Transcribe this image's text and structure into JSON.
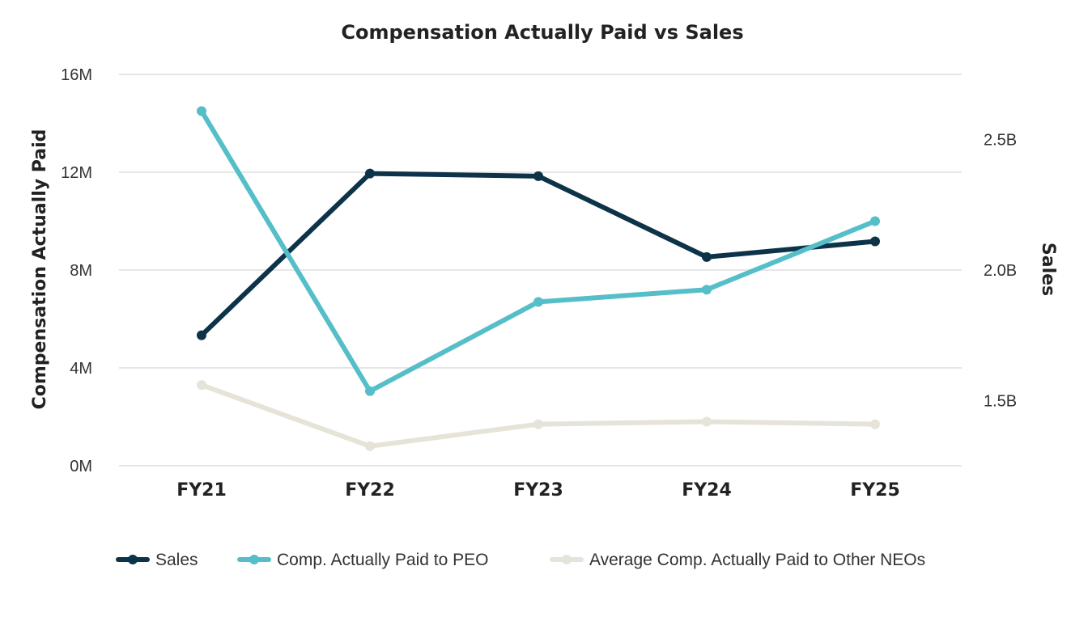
{
  "chart_data": {
    "type": "line",
    "title": "Compensation Actually Paid vs Sales",
    "categories": [
      "FY21",
      "FY22",
      "FY23",
      "FY24",
      "FY25"
    ],
    "y_left": {
      "label": "Compensation Actually Paid",
      "range": [
        0,
        16
      ],
      "ticks": [
        0,
        4,
        8,
        12,
        16
      ],
      "tick_labels": [
        "0M",
        "4M",
        "8M",
        "12M",
        "16M"
      ],
      "unit": "M"
    },
    "y_right": {
      "label": "Sales",
      "range": [
        1.25,
        2.75
      ],
      "ticks": [
        1.5,
        2.0,
        2.5
      ],
      "tick_labels": [
        "1.5B",
        "2.0B",
        "2.5B"
      ],
      "unit": "B"
    },
    "grid": true,
    "legend_position": "bottom",
    "series": [
      {
        "name": "Sales",
        "axis": "right",
        "color": "#0d3349",
        "values": [
          1.75,
          2.37,
          2.36,
          2.05,
          2.11
        ]
      },
      {
        "name": "Comp. Actually Paid to PEO",
        "axis": "left",
        "color": "#55bec8",
        "values": [
          14.5,
          3.05,
          6.7,
          7.2,
          10.0
        ]
      },
      {
        "name": "Average Comp. Actually Paid to Other NEOs",
        "axis": "left",
        "color": "#e6e3d8",
        "values": [
          3.3,
          0.8,
          1.7,
          1.8,
          1.7
        ]
      }
    ]
  }
}
